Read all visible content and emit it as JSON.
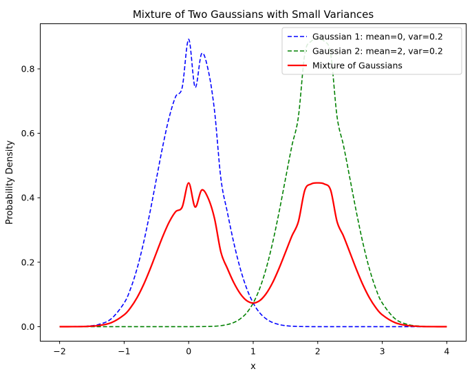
{
  "chart_data": {
    "type": "line",
    "title": "Mixture of Two Gaussians with Small Variances",
    "xlabel": "x",
    "ylabel": "Probability Density",
    "xlim": [
      -2.3,
      4.3
    ],
    "ylim": [
      -0.045,
      0.94
    ],
    "xticks": [
      -2,
      -1,
      0,
      1,
      2,
      3,
      4
    ],
    "xtick_labels": [
      "−2",
      "−1",
      "0",
      "1",
      "2",
      "3",
      "4"
    ],
    "yticks": [
      0.0,
      0.2,
      0.4,
      0.6,
      0.8
    ],
    "ytick_labels": [
      "0.0",
      "0.2",
      "0.4",
      "0.6",
      "0.8"
    ],
    "grid": false,
    "legend_position": "top-right",
    "x": [
      -2.0,
      -1.8,
      -1.6,
      -1.4,
      -1.2,
      -1.0,
      -0.9,
      -0.8,
      -0.7,
      -0.6,
      -0.5,
      -0.4,
      -0.3,
      -0.2,
      -0.1,
      0.0,
      0.1,
      0.2,
      0.3,
      0.4,
      0.5,
      0.6,
      0.7,
      0.8,
      0.9,
      1.0,
      1.1,
      1.2,
      1.3,
      1.4,
      1.5,
      1.6,
      1.7,
      1.8,
      1.9,
      2.0,
      2.1,
      2.2,
      2.3,
      2.4,
      2.5,
      2.6,
      2.7,
      2.8,
      2.9,
      3.0,
      3.2,
      3.4,
      3.6,
      3.8,
      4.0
    ],
    "series": [
      {
        "name": "Gaussian 1: mean=0, var=0.2",
        "color": "#0000ff",
        "dash": "dashed",
        "values": [
          0.0,
          0.0003,
          0.0014,
          0.0066,
          0.0244,
          0.0734,
          0.1181,
          0.18,
          0.2597,
          0.3547,
          0.4586,
          0.5615,
          0.651,
          0.7146,
          0.7427,
          0.8921,
          0.7427,
          0.8471,
          0.7986,
          0.6709,
          0.4586,
          0.3547,
          0.2597,
          0.18,
          0.1181,
          0.0734,
          0.0431,
          0.0244,
          0.0129,
          0.0066,
          0.0031,
          0.0014,
          0.0006,
          0.0003,
          0.0001,
          0.0,
          0.0,
          0.0,
          0.0,
          0.0,
          0.0,
          0.0,
          0.0,
          0.0,
          0.0,
          0.0,
          0.0,
          0.0,
          0.0,
          0.0,
          0.0
        ]
      },
      {
        "name": "Gaussian 2: mean=2, var=0.2",
        "color": "#008000",
        "dash": "dashed",
        "values": [
          0.0,
          0.0,
          0.0,
          0.0,
          0.0,
          0.0,
          0.0,
          0.0,
          0.0,
          0.0,
          0.0,
          0.0,
          0.0,
          0.0,
          0.0,
          0.0,
          0.0001,
          0.0003,
          0.0006,
          0.0014,
          0.0031,
          0.0066,
          0.0129,
          0.0244,
          0.0431,
          0.0734,
          0.1181,
          0.18,
          0.2597,
          0.3547,
          0.4586,
          0.5615,
          0.651,
          0.8471,
          0.8859,
          0.8921,
          0.8859,
          0.8471,
          0.651,
          0.5615,
          0.4586,
          0.3547,
          0.2597,
          0.18,
          0.1181,
          0.0734,
          0.0244,
          0.0066,
          0.0014,
          0.0003,
          0.0
        ]
      },
      {
        "name": "Mixture of Gaussians",
        "color": "#ff0000",
        "dash": "solid",
        "values": [
          0.0,
          0.0001,
          0.0007,
          0.0033,
          0.0122,
          0.0367,
          0.0591,
          0.09,
          0.1299,
          0.1774,
          0.2293,
          0.2808,
          0.3255,
          0.3573,
          0.3714,
          0.4461,
          0.3714,
          0.4237,
          0.3996,
          0.3362,
          0.2308,
          0.1807,
          0.1363,
          0.1022,
          0.0806,
          0.0734,
          0.0806,
          0.1022,
          0.1363,
          0.1807,
          0.2308,
          0.2815,
          0.3258,
          0.4237,
          0.443,
          0.4461,
          0.443,
          0.4237,
          0.3255,
          0.2808,
          0.2293,
          0.1774,
          0.1299,
          0.09,
          0.0591,
          0.0367,
          0.0122,
          0.0033,
          0.0007,
          0.0001,
          0.0
        ]
      }
    ]
  }
}
